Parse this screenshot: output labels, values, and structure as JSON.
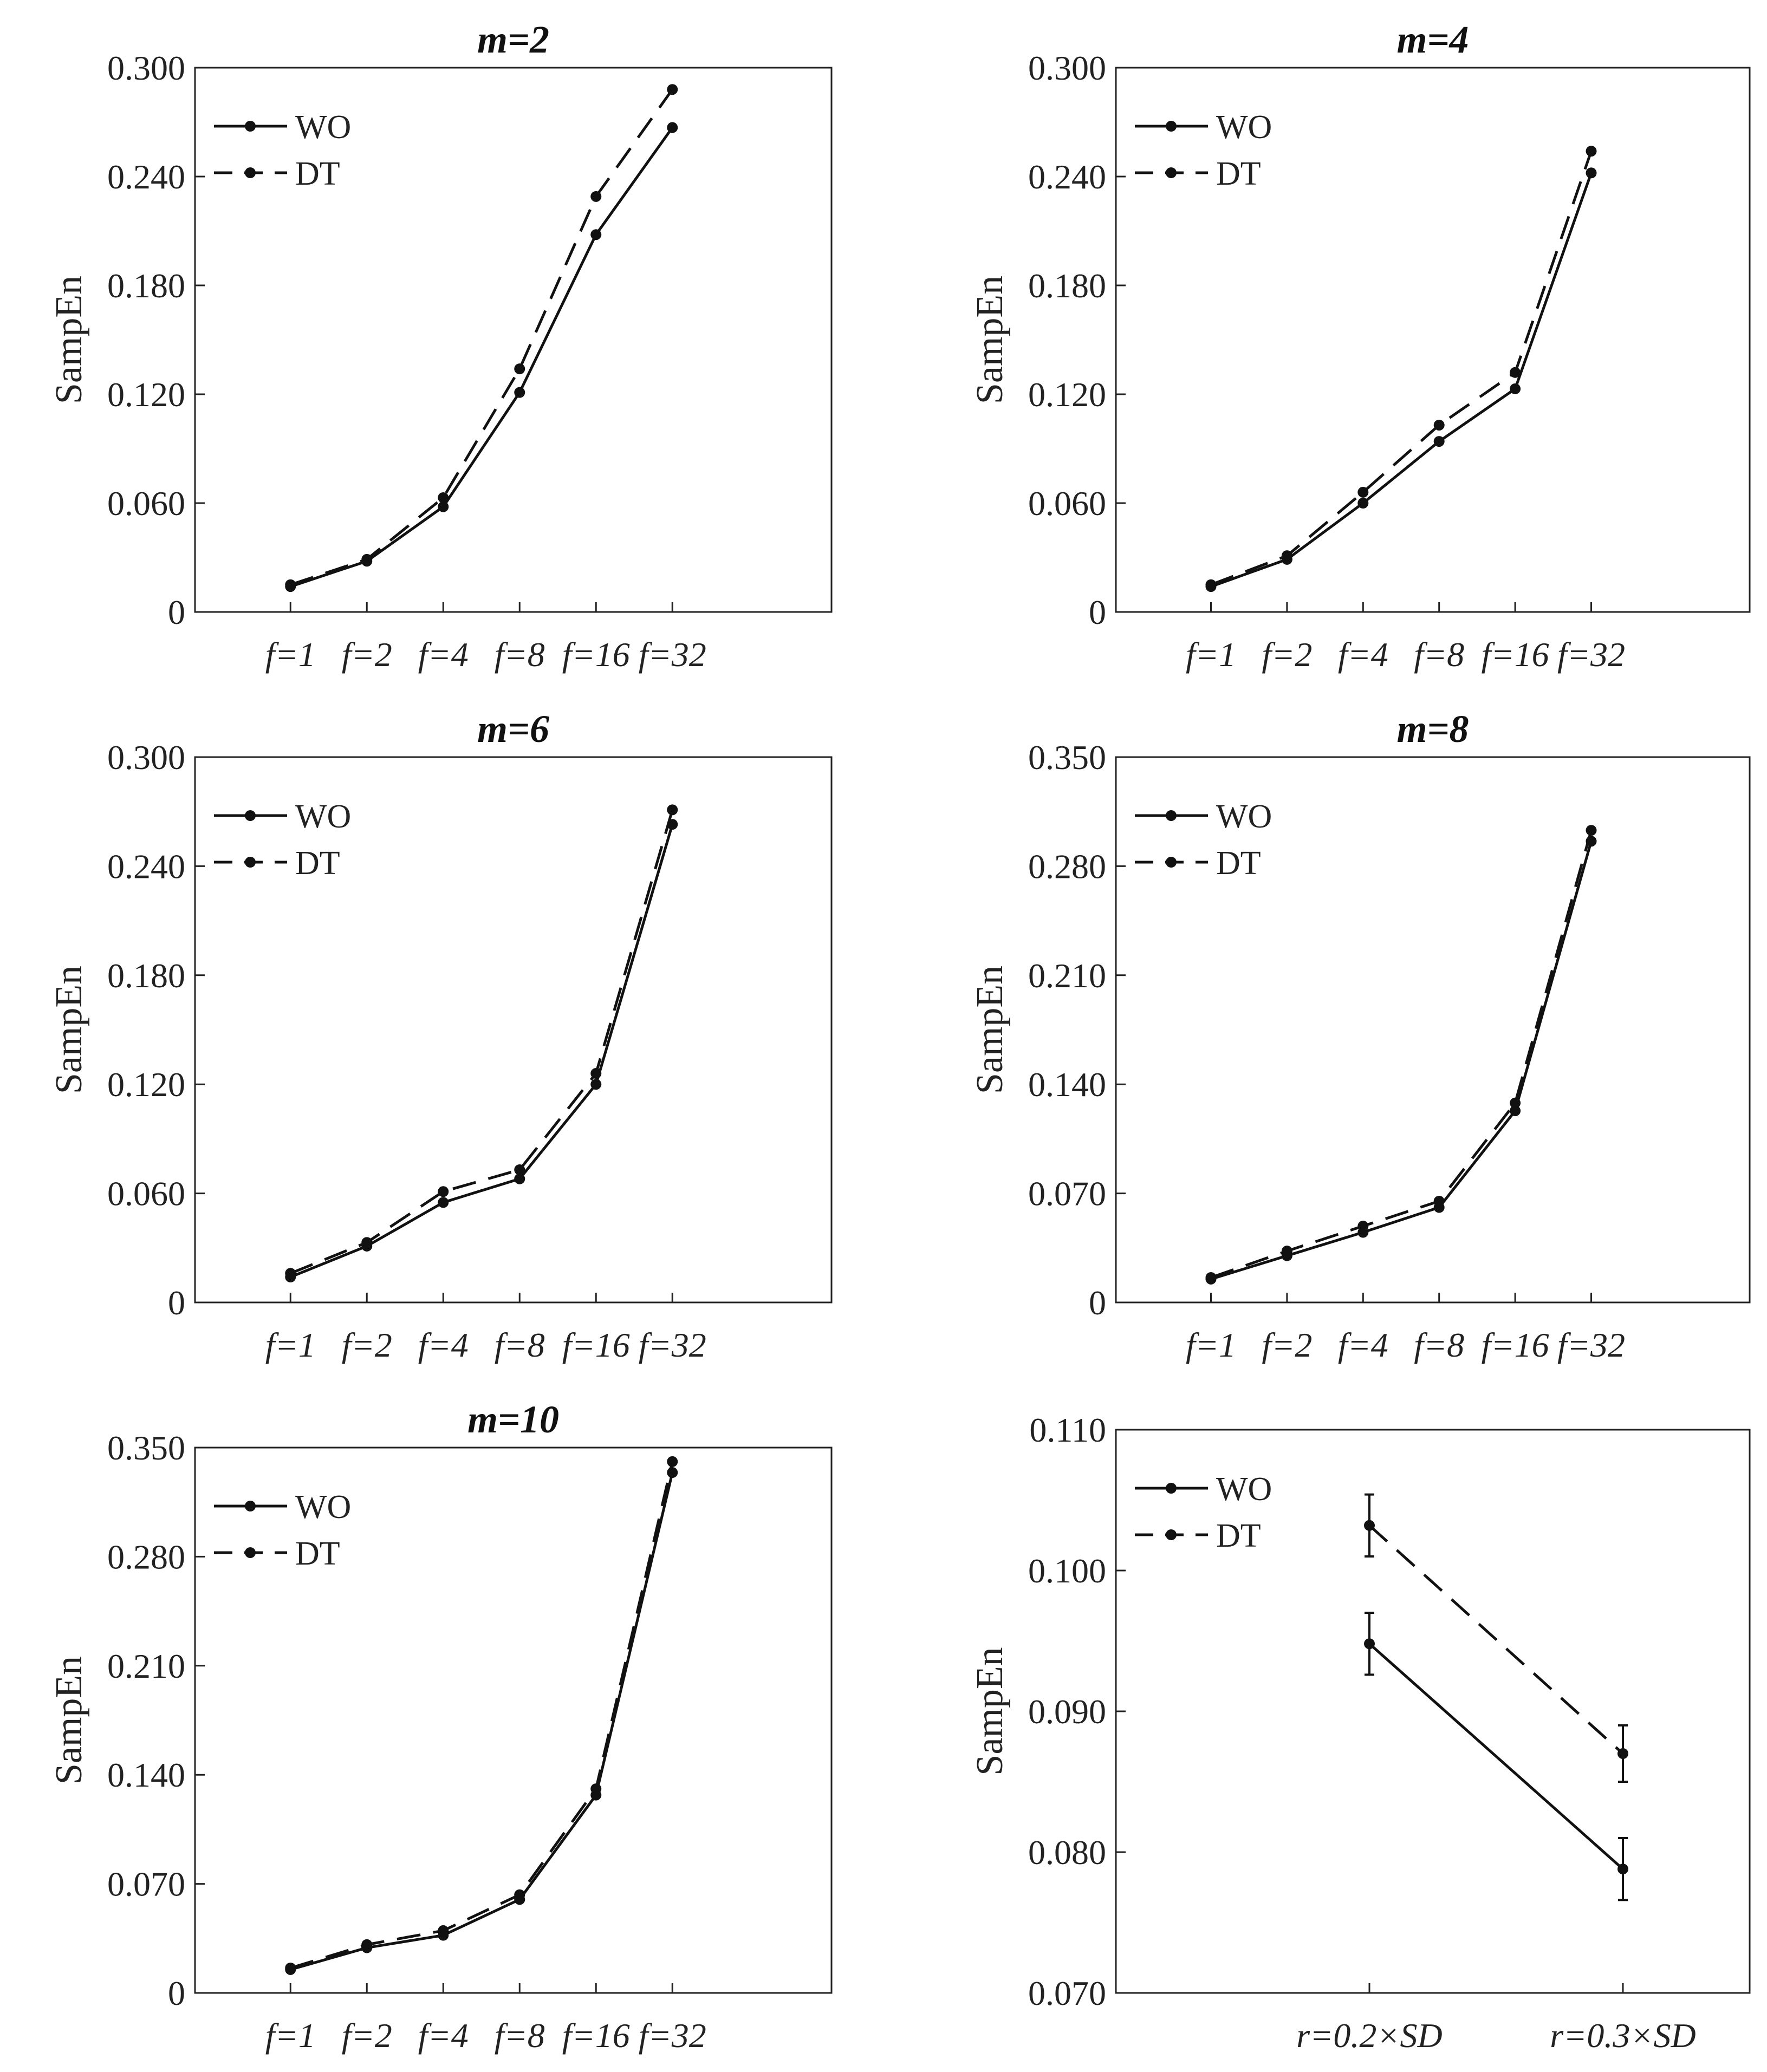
{
  "colors": {
    "line": "#111111",
    "frame": "#222222",
    "text": "#222222",
    "background": "#ffffff"
  },
  "legend": {
    "solid": "WO",
    "dashed": "DT",
    "position": "top-left"
  },
  "chart_data": [
    {
      "type": "line",
      "title": "m=2",
      "ylabel": "SampEn",
      "xlabel": "",
      "categories": [
        "f=1",
        "f=2",
        "f=4",
        "f=8",
        "f=16",
        "f=32"
      ],
      "ylim": [
        0,
        0.3
      ],
      "yticks": [
        "0",
        "0.060",
        "0.120",
        "0.180",
        "0.240",
        "0.300"
      ],
      "series": [
        {
          "name": "WO",
          "style": "solid",
          "values": [
            0.014,
            0.028,
            0.058,
            0.121,
            0.208,
            0.267
          ]
        },
        {
          "name": "DT",
          "style": "dashed",
          "values": [
            0.015,
            0.029,
            0.063,
            0.134,
            0.229,
            0.288
          ]
        }
      ]
    },
    {
      "type": "line",
      "title": "m=4",
      "ylabel": "SampEn",
      "xlabel": "",
      "categories": [
        "f=1",
        "f=2",
        "f=4",
        "f=8",
        "f=16",
        "f=32"
      ],
      "ylim": [
        0,
        0.3
      ],
      "yticks": [
        "0",
        "0.060",
        "0.120",
        "0.180",
        "0.240",
        "0.300"
      ],
      "series": [
        {
          "name": "WO",
          "style": "solid",
          "values": [
            0.014,
            0.029,
            0.06,
            0.094,
            0.123,
            0.242
          ]
        },
        {
          "name": "DT",
          "style": "dashed",
          "values": [
            0.015,
            0.031,
            0.066,
            0.103,
            0.132,
            0.254
          ]
        }
      ]
    },
    {
      "type": "line",
      "title": "m=6",
      "ylabel": "SampEn",
      "xlabel": "",
      "categories": [
        "f=1",
        "f=2",
        "f=4",
        "f=8",
        "f=16",
        "f=32"
      ],
      "ylim": [
        0,
        0.3
      ],
      "yticks": [
        "0",
        "0.060",
        "0.120",
        "0.180",
        "0.240",
        "0.300"
      ],
      "series": [
        {
          "name": "WO",
          "style": "solid",
          "values": [
            0.014,
            0.031,
            0.055,
            0.068,
            0.12,
            0.263
          ]
        },
        {
          "name": "DT",
          "style": "dashed",
          "values": [
            0.016,
            0.033,
            0.061,
            0.073,
            0.126,
            0.271
          ]
        }
      ]
    },
    {
      "type": "line",
      "title": "m=8",
      "ylabel": "SampEn",
      "xlabel": "",
      "categories": [
        "f=1",
        "f=2",
        "f=4",
        "f=8",
        "f=16",
        "f=32"
      ],
      "ylim": [
        0,
        0.35
      ],
      "yticks": [
        "0",
        "0.070",
        "0.140",
        "0.210",
        "0.280",
        "0.350"
      ],
      "series": [
        {
          "name": "WO",
          "style": "solid",
          "values": [
            0.015,
            0.03,
            0.045,
            0.061,
            0.123,
            0.296
          ]
        },
        {
          "name": "DT",
          "style": "dashed",
          "values": [
            0.016,
            0.033,
            0.049,
            0.065,
            0.128,
            0.303
          ]
        }
      ]
    },
    {
      "type": "line",
      "title": "m=10",
      "ylabel": "SampEn",
      "xlabel": "",
      "categories": [
        "f=1",
        "f=2",
        "f=4",
        "f=8",
        "f=16",
        "f=32"
      ],
      "ylim": [
        0,
        0.35
      ],
      "yticks": [
        "0",
        "0.070",
        "0.140",
        "0.210",
        "0.280",
        "0.350"
      ],
      "series": [
        {
          "name": "WO",
          "style": "solid",
          "values": [
            0.015,
            0.029,
            0.037,
            0.06,
            0.127,
            0.334
          ]
        },
        {
          "name": "DT",
          "style": "dashed",
          "values": [
            0.016,
            0.031,
            0.04,
            0.063,
            0.131,
            0.341
          ]
        }
      ]
    },
    {
      "type": "line",
      "title": "",
      "ylabel": "SampEn",
      "xlabel": "",
      "categories": [
        "r=0.2×SD",
        "r=0.3×SD"
      ],
      "category_positions": [
        0.4,
        0.8
      ],
      "ylim": [
        0.07,
        0.11
      ],
      "yticks": [
        "0.070",
        "0.080",
        "0.090",
        "0.100",
        "0.110"
      ],
      "series": [
        {
          "name": "WO",
          "style": "solid",
          "values": [
            0.0948,
            0.0788
          ],
          "errors": [
            0.0022,
            0.0022
          ]
        },
        {
          "name": "DT",
          "style": "dashed",
          "values": [
            0.1032,
            0.087
          ],
          "errors": [
            0.0022,
            0.002
          ]
        }
      ]
    }
  ]
}
